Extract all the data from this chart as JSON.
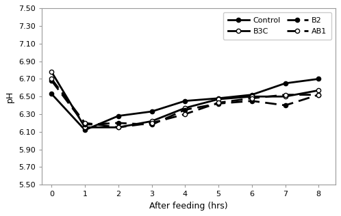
{
  "x": [
    0,
    1,
    2,
    3,
    4,
    5,
    6,
    7,
    8
  ],
  "series": {
    "Control": {
      "y": [
        6.53,
        6.12,
        6.28,
        6.33,
        6.45,
        6.48,
        6.52,
        6.65,
        6.7
      ],
      "linestyle": "-",
      "marker": "o",
      "markersize": 4.5,
      "color": "#000000",
      "markerfacecolor": "#000000",
      "linewidth": 2.0
    },
    "B3C": {
      "y": [
        6.78,
        6.15,
        6.15,
        6.22,
        6.37,
        6.47,
        6.5,
        6.5,
        6.57
      ],
      "linestyle": "-",
      "marker": "o",
      "markersize": 4.5,
      "color": "#000000",
      "markerfacecolor": "#ffffff",
      "linewidth": 2.0
    },
    "B2": {
      "y": [
        6.68,
        6.18,
        6.2,
        6.18,
        6.35,
        6.42,
        6.45,
        6.4,
        6.52
      ],
      "linestyle": "--",
      "marker": "o",
      "markersize": 4.5,
      "color": "#000000",
      "markerfacecolor": "#000000",
      "linewidth": 2.0
    },
    "AB1": {
      "y": [
        6.7,
        6.2,
        6.15,
        6.2,
        6.3,
        6.43,
        6.48,
        6.52,
        6.52
      ],
      "linestyle": "--",
      "marker": "o",
      "markersize": 4.5,
      "color": "#000000",
      "markerfacecolor": "#ffffff",
      "linewidth": 2.0
    }
  },
  "xlabel": "After feeding (hrs)",
  "ylabel": "pH",
  "ylim": [
    5.5,
    7.5
  ],
  "yticks": [
    5.5,
    5.7,
    5.9,
    6.1,
    6.3,
    6.5,
    6.7,
    6.9,
    7.1,
    7.3,
    7.5
  ],
  "xlim": [
    -0.3,
    8.5
  ],
  "xticks": [
    0,
    1,
    2,
    3,
    4,
    5,
    6,
    7,
    8
  ],
  "legend_order": [
    "Control",
    "B3C",
    "B2",
    "AB1"
  ],
  "background_color": "#ffffff"
}
